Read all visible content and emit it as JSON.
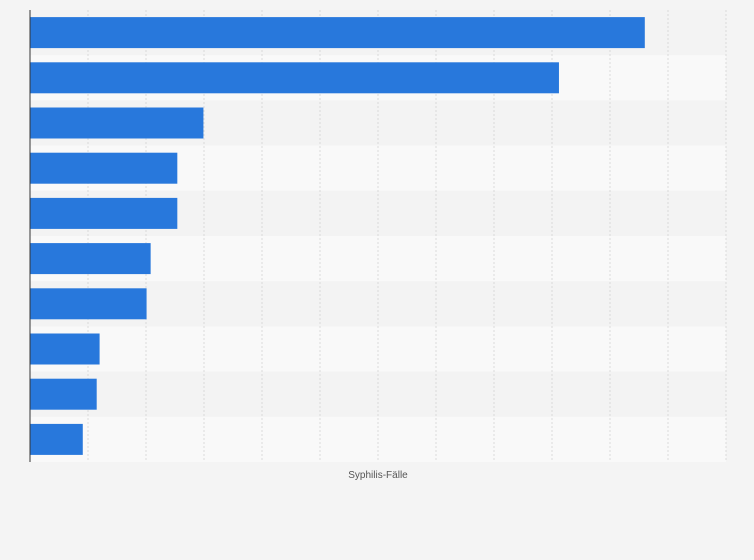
{
  "chart_data": {
    "type": "bar",
    "orientation": "horizontal",
    "title": "",
    "xlabel": "Syphilis-Fälle",
    "ylabel": "",
    "categories": [
      "",
      "",
      "",
      "",
      "",
      "",
      "",
      "",
      "",
      ""
    ],
    "values": [
      1060,
      912,
      299,
      254,
      254,
      208,
      201,
      120,
      115,
      91
    ],
    "xlim": [
      0,
      1200
    ],
    "grid": true,
    "legend": "none",
    "colors": {
      "bar": "#2878dc",
      "background": "#f4f4f4",
      "band_light": "#f9f9f9",
      "band_dark": "#f3f3f3",
      "grid": "#dadada",
      "axis": "#333333"
    }
  }
}
